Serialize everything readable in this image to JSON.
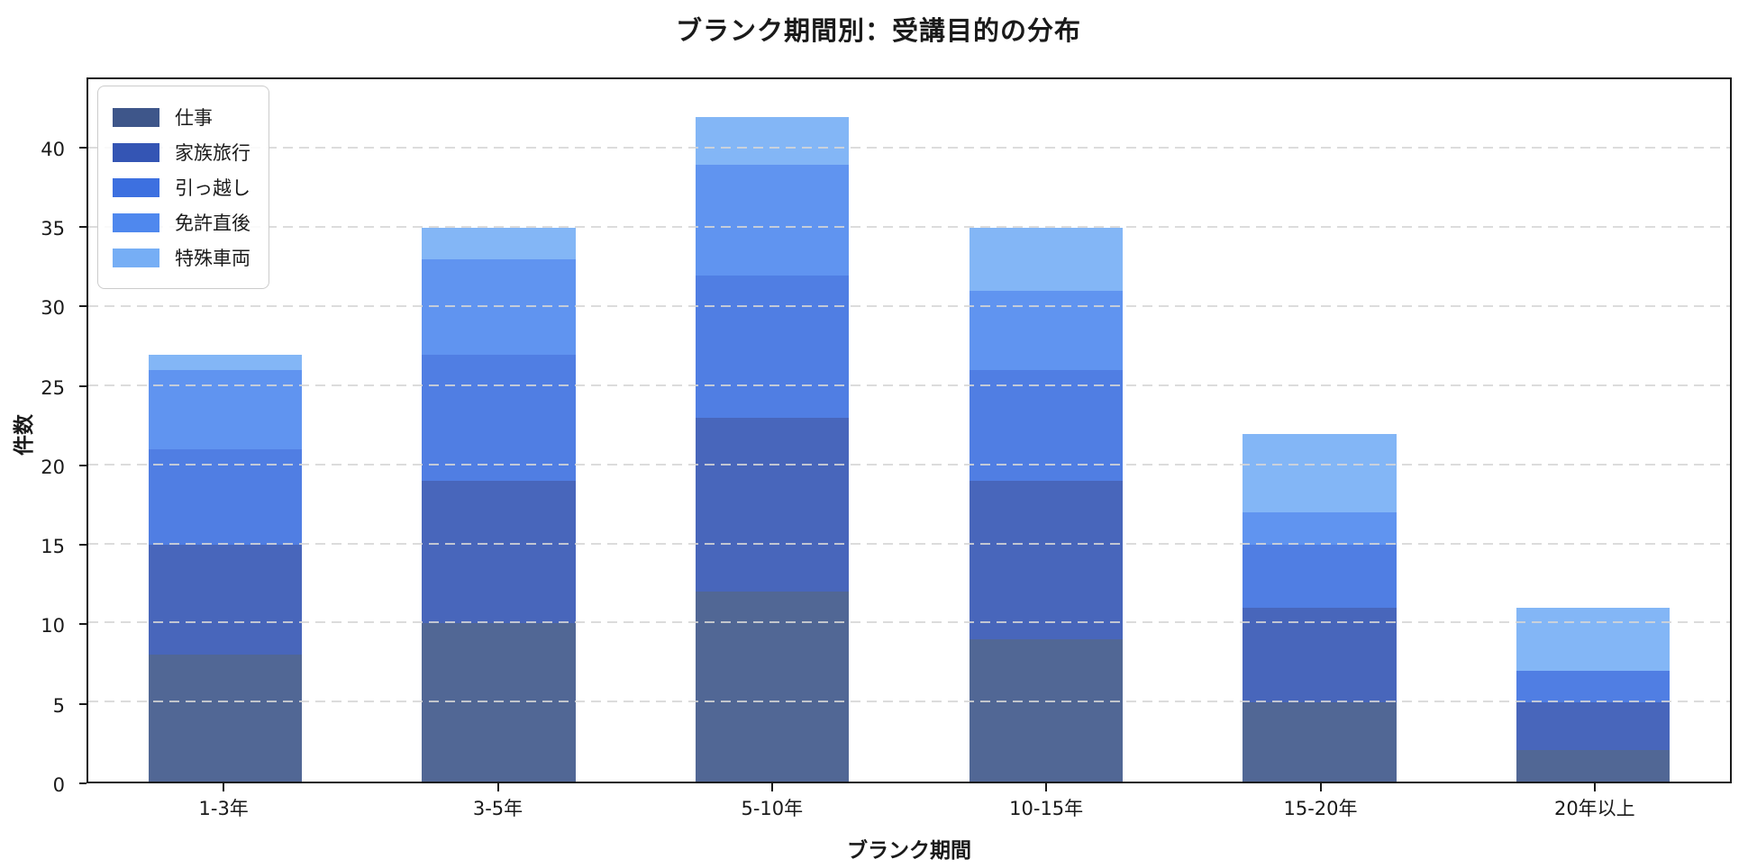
{
  "title": "ブランク期間別：受講目的の分布",
  "chart_data": {
    "type": "bar",
    "stacked": true,
    "title": "ブランク期間別：受講目的の分布",
    "xlabel": "ブランク期間",
    "ylabel": "件数",
    "categories": [
      "1-3年",
      "3-5年",
      "5-10年",
      "10-15年",
      "15-20年",
      "20年以上"
    ],
    "series": [
      {
        "name": "仕事",
        "color": "#3E568A",
        "values": [
          8,
          10,
          12,
          9,
          5,
          2
        ]
      },
      {
        "name": "家族旅行",
        "color": "#3455B4",
        "values": [
          7,
          9,
          11,
          10,
          6,
          3
        ]
      },
      {
        "name": "引っ越し",
        "color": "#3D70E0",
        "values": [
          6,
          8,
          9,
          7,
          4,
          2
        ]
      },
      {
        "name": "免許直後",
        "color": "#4F88EE",
        "values": [
          5,
          6,
          7,
          5,
          2,
          0
        ]
      },
      {
        "name": "特殊車両",
        "color": "#76AEF5",
        "values": [
          1,
          2,
          3,
          4,
          5,
          4
        ]
      }
    ],
    "totals": [
      27,
      35,
      42,
      35,
      22,
      11
    ],
    "yticks": [
      0,
      5,
      10,
      15,
      20,
      25,
      30,
      35,
      40
    ],
    "ylim": [
      0,
      44.4
    ],
    "grid": "dashed-horizontal",
    "legend_position": "upper-left",
    "axis_color": "#1a1a1a"
  }
}
